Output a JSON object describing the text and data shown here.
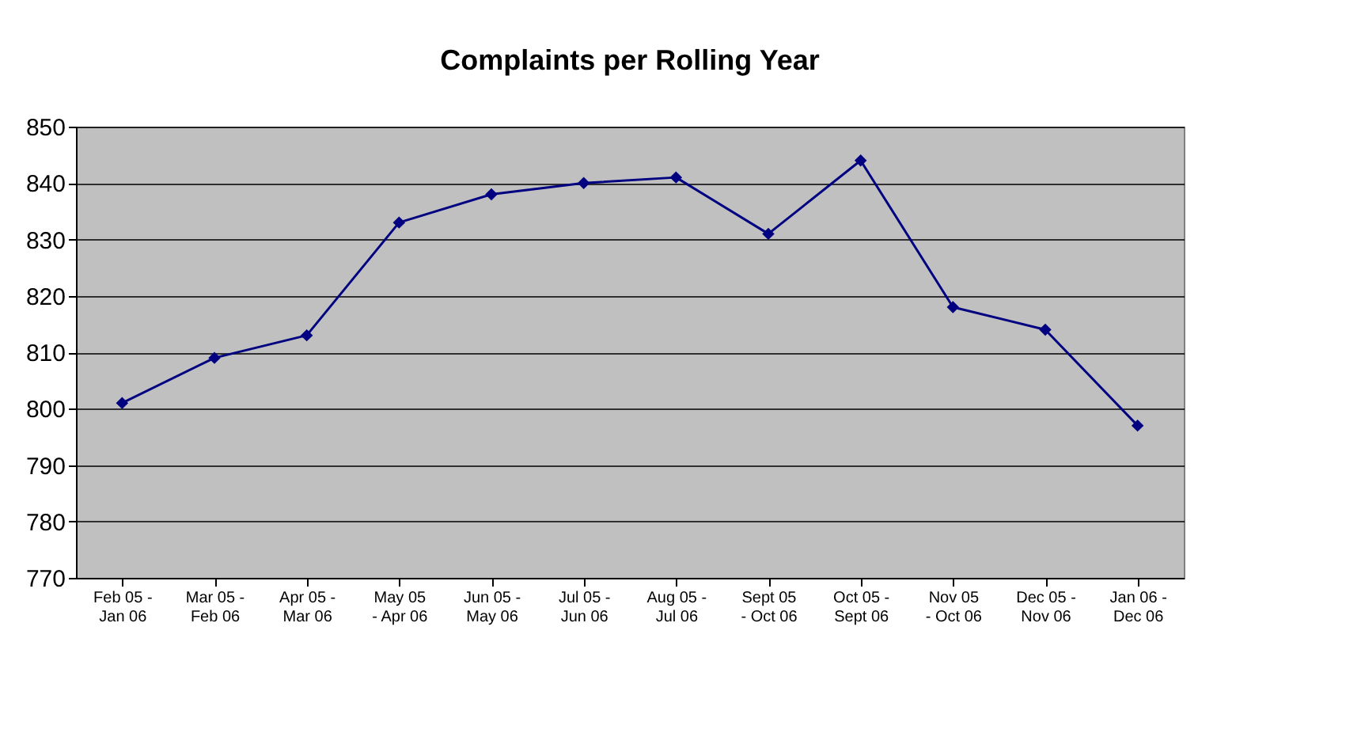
{
  "chart_data": {
    "type": "line",
    "title": "Complaints per Rolling Year",
    "categories": [
      "Feb 05 -\nJan 06",
      "Mar 05 -\nFeb 06",
      "Apr 05 -\nMar 06",
      "May 05\n- Apr 06",
      "Jun 05 -\nMay 06",
      "Jul 05 -\nJun 06",
      "Aug 05 -\nJul 06",
      "Sept 05\n- Oct 06",
      "Oct 05 -\nSept 06",
      "Nov 05\n- Oct 06",
      "Dec 05 -\nNov 06",
      "Jan 06 -\nDec 06"
    ],
    "series": [
      {
        "color": "#000080",
        "values": [
          801,
          809,
          813,
          833,
          838,
          840,
          841,
          831,
          844,
          818,
          814,
          797
        ]
      }
    ],
    "ylim": [
      770,
      850
    ],
    "yticks": [
      770,
      780,
      790,
      800,
      810,
      820,
      830,
      840,
      850
    ],
    "grid": "y",
    "legend": false,
    "marker": "diamond",
    "line_style": "solid"
  }
}
